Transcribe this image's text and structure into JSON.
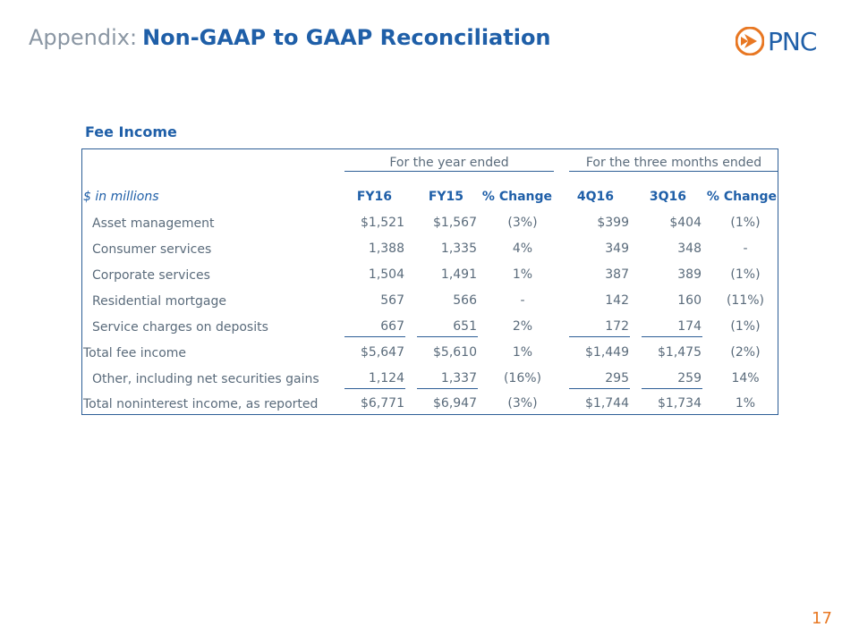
{
  "header": {
    "prefix": "Appendix:",
    "title": "Non-GAAP to GAAP Reconciliation",
    "logo_text": "PNC",
    "logo_color": "#e87722",
    "brand_color": "#1f5fa8"
  },
  "section": {
    "title": "Fee Income"
  },
  "table": {
    "group_year": "For the year ended",
    "group_quarter": "For the three months ended",
    "units": "$ in millions",
    "columns": [
      "FY16",
      "FY15",
      "% Change",
      "4Q16",
      "3Q16",
      "% Change"
    ],
    "rows": [
      {
        "label": "Asset management",
        "values": [
          "$1,521",
          "$1,567",
          "(3%)",
          "$399",
          "$404",
          "(1%)"
        ]
      },
      {
        "label": "Consumer services",
        "values": [
          "1,388",
          "1,335",
          "4%",
          "349",
          "348",
          "-"
        ]
      },
      {
        "label": "Corporate services",
        "values": [
          "1,504",
          "1,491",
          "1%",
          "387",
          "389",
          "(1%)"
        ]
      },
      {
        "label": "Residential mortgage",
        "values": [
          "567",
          "566",
          "-",
          "142",
          "160",
          "(11%)"
        ]
      },
      {
        "label": "Service charges on deposits",
        "values": [
          "667",
          "651",
          "2%",
          "172",
          "174",
          "(1%)"
        ]
      },
      {
        "label": "Total fee income",
        "values": [
          "$5,647",
          "$5,610",
          "1%",
          "$1,449",
          "$1,475",
          "(2%)"
        ]
      },
      {
        "label": "Other, including net securities gains",
        "values": [
          "1,124",
          "1,337",
          "(16%)",
          "295",
          "259",
          "14%"
        ]
      },
      {
        "label": "Total noninterest income, as reported",
        "values": [
          "$6,771",
          "$6,947",
          "(3%)",
          "$1,744",
          "$1,734",
          "1%"
        ]
      }
    ]
  },
  "page": {
    "number": "17"
  }
}
